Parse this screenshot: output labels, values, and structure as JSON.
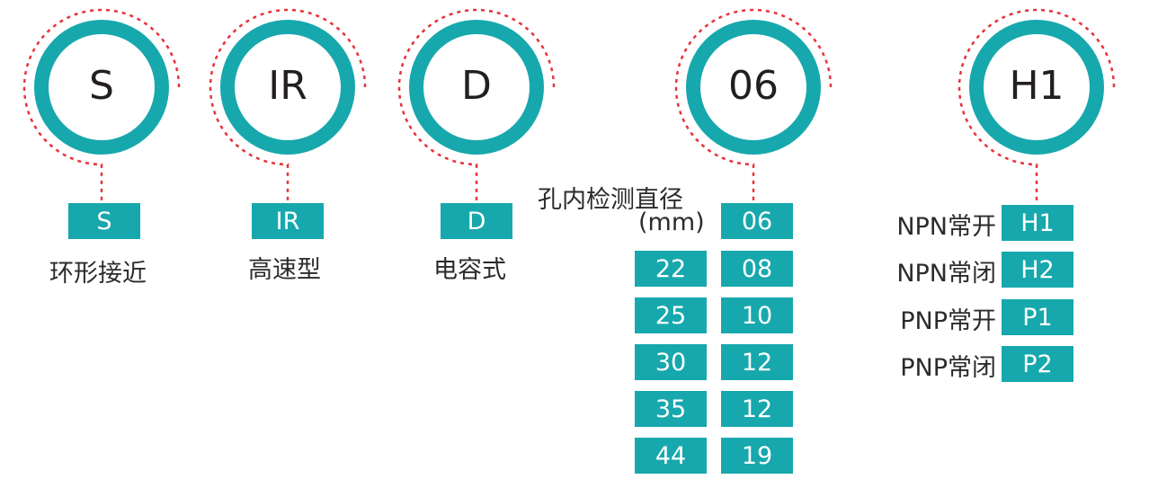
{
  "colors": {
    "teal": "#17a8ad",
    "dotted_red": "#e8323c",
    "text": "#2b2b2b"
  },
  "codes": [
    {
      "circle": "S",
      "box": "S",
      "label": "环形接近"
    },
    {
      "circle": "IR",
      "box": "IR",
      "label": "高速型"
    },
    {
      "circle": "D",
      "box": "D",
      "label": "电容式"
    },
    {
      "circle": "06",
      "header_line1": "孔内检测直径",
      "header_line2": "(mm)",
      "right_column": [
        "06",
        "08",
        "10",
        "12",
        "12",
        "19"
      ],
      "left_column": [
        "22",
        "25",
        "30",
        "35",
        "44"
      ]
    },
    {
      "circle": "H1",
      "options": [
        {
          "label": "NPN常开",
          "code": "H1"
        },
        {
          "label": "NPN常闭",
          "code": "H2"
        },
        {
          "label": "PNP常开",
          "code": "P1"
        },
        {
          "label": "PNP常闭",
          "code": "P2"
        }
      ]
    }
  ]
}
